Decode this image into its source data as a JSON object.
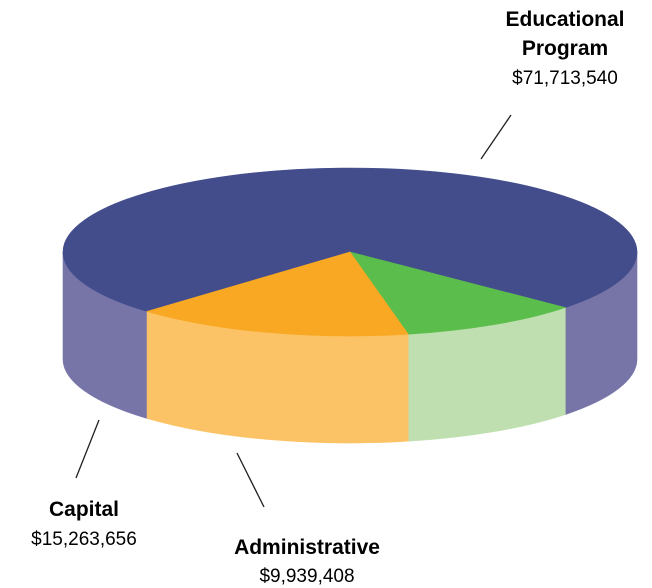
{
  "chart_data": {
    "type": "pie",
    "style": "3d",
    "title": "",
    "slices": [
      {
        "name_lines": [
          "Educational",
          "Program"
        ],
        "value_label": "$71,713,540",
        "value": 71713540,
        "top_color": "#434d8c",
        "side_color": "#7775a8"
      },
      {
        "name_lines": [
          "Administrative"
        ],
        "value_label": "$9,939,408",
        "value": 9939408,
        "top_color": "#5bbd4c",
        "side_color": "#bfdfb0"
      },
      {
        "name_lines": [
          "Capital"
        ],
        "value_label": "$15,263,656",
        "value": 15263656,
        "top_color": "#f8a823",
        "side_color": "#fcc366"
      }
    ]
  }
}
